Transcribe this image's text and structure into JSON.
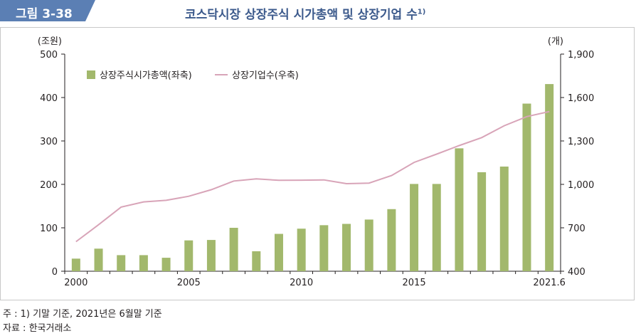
{
  "figure_label": "그림 3-38",
  "title_main": "코스닥시장 상장주식 시가총액 및 상장기업 수",
  "title_sup": "1)",
  "notes": {
    "footnote": "주 : 1) 기말 기준, 2021년은 6월말 기준",
    "source": "자료 : 한국거래소"
  },
  "colors": {
    "bar": "#a2b86c",
    "line": "#d8a4b8",
    "title": "#3c5a8c",
    "label_bg": "#5b7fb4"
  },
  "chart_data": {
    "type": "bar+line",
    "x": [
      "2000",
      "2001",
      "2002",
      "2003",
      "2004",
      "2005",
      "2006",
      "2007",
      "2008",
      "2009",
      "2010",
      "2011",
      "2012",
      "2013",
      "2014",
      "2015",
      "2016",
      "2017",
      "2018",
      "2019",
      "2020",
      "2021.6"
    ],
    "x_tick_labels": [
      "2000",
      "2005",
      "2010",
      "2015",
      "2021.6"
    ],
    "left_axis": {
      "unit": "(조원)",
      "ylim": [
        0,
        500
      ],
      "ticks": [
        "0",
        "100",
        "200",
        "300",
        "400",
        "500"
      ]
    },
    "right_axis": {
      "unit": "(개)",
      "ylim": [
        400,
        1900
      ],
      "ticks": [
        "400",
        "700",
        "1,000",
        "1,300",
        "1,600",
        "1,900"
      ]
    },
    "series": [
      {
        "name": "상장주식시가총액(좌축)",
        "type": "bar",
        "axis": "left",
        "values": [
          29,
          52,
          37,
          37,
          31,
          71,
          72,
          100,
          46,
          86,
          98,
          106,
          109,
          119,
          143,
          201,
          201,
          283,
          228,
          241,
          386,
          431
        ]
      },
      {
        "name": "상장기업수(우축)",
        "type": "line",
        "axis": "right",
        "values": [
          604,
          721,
          843,
          879,
          890,
          918,
          963,
          1023,
          1038,
          1028,
          1029,
          1031,
          1005,
          1009,
          1061,
          1152,
          1209,
          1268,
          1323,
          1405,
          1468,
          1503
        ]
      }
    ],
    "legend_position": "top-left",
    "grid": false
  }
}
